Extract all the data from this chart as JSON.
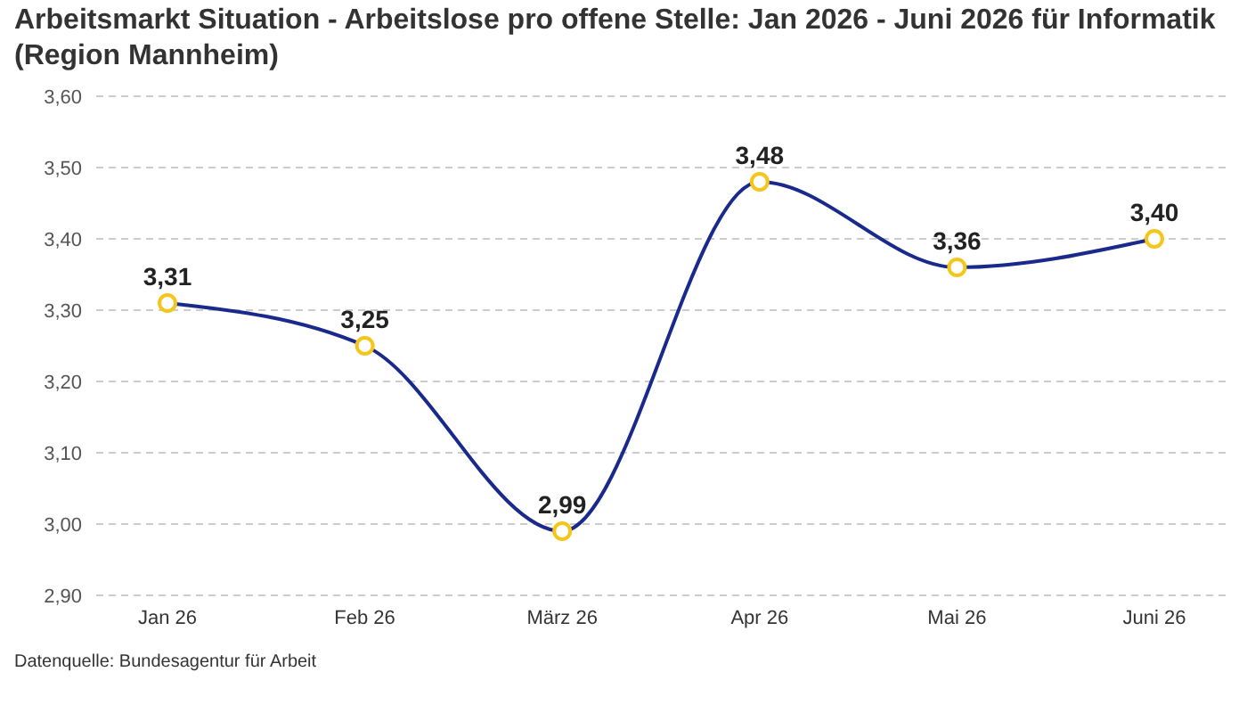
{
  "chart_data": {
    "type": "line",
    "title": "Arbeitsmarkt Situation - Arbeitslose pro offene Stelle: Jan 2026 - Juni 2026 für Informatik (Region Mannheim)",
    "categories": [
      "Jan 26",
      "Feb 26",
      "März 26",
      "Apr 26",
      "Mai 26",
      "Juni 26"
    ],
    "series": [
      {
        "color": "#1a2a8c",
        "values": [
          3.31,
          3.25,
          2.99,
          3.48,
          3.36,
          3.4
        ],
        "value_labels": [
          "3,31",
          "3,25",
          "2,99",
          "3,48",
          "3,36",
          "3,40"
        ]
      }
    ],
    "ylim": [
      2.9,
      3.6
    ],
    "yticks": [
      {
        "value": 2.9,
        "label": "2,90"
      },
      {
        "value": 3.0,
        "label": "3,00"
      },
      {
        "value": 3.1,
        "label": "3,10"
      },
      {
        "value": 3.2,
        "label": "3,20"
      },
      {
        "value": 3.3,
        "label": "3,30"
      },
      {
        "value": 3.4,
        "label": "3,40"
      },
      {
        "value": 3.5,
        "label": "3,50"
      },
      {
        "value": 3.6,
        "label": "3,60"
      }
    ],
    "grid": "y",
    "marker": "circle",
    "line_style": "solid",
    "annotations": [
      "Datenquelle: Bundesagentur für Arbeit"
    ]
  }
}
